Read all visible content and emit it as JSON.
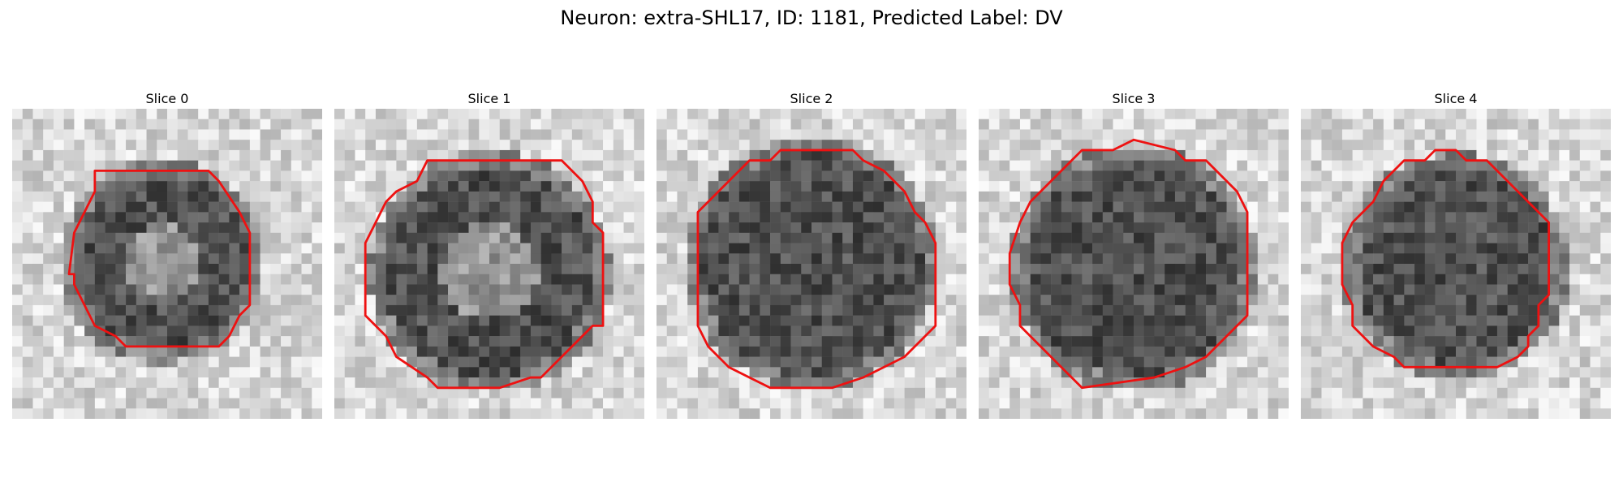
{
  "figure": {
    "title": "Neuron: extra-SHL17, ID: 1181, Predicted Label: DV"
  },
  "panels": [
    {
      "title": "Slice 0"
    },
    {
      "title": "Slice 1"
    },
    {
      "title": "Slice 2"
    },
    {
      "title": "Slice 3"
    },
    {
      "title": "Slice 4"
    }
  ],
  "colors": {
    "contour": "#ee1111",
    "background": "#ffffff"
  }
}
